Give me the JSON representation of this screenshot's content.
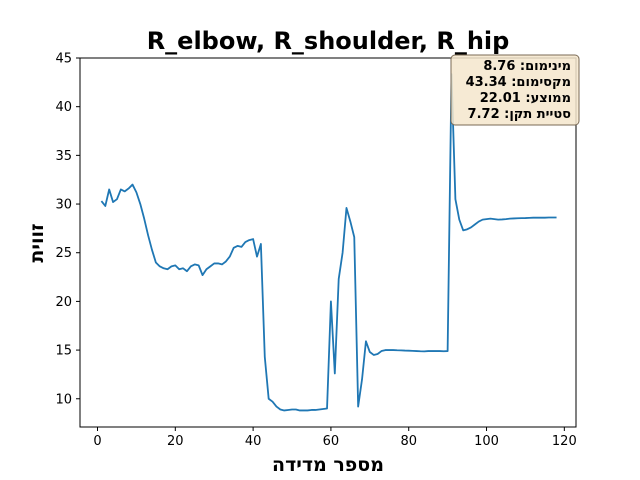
{
  "chart_data": {
    "type": "line",
    "title": "R_elbow, R_shoulder, R_hip",
    "xlabel": "מספר מדידה",
    "ylabel": "זווית",
    "xlim": [
      -4.5,
      123
    ],
    "ylim": [
      7.1,
      45
    ],
    "xticks": [
      0,
      20,
      40,
      60,
      80,
      100,
      120
    ],
    "yticks": [
      10,
      15,
      20,
      25,
      30,
      35,
      40,
      45
    ],
    "grid": false,
    "series": [
      {
        "color": "#1f77b4",
        "x": [
          1,
          2,
          3,
          4,
          5,
          6,
          7,
          8,
          9,
          10,
          11,
          12,
          13,
          14,
          15,
          16,
          17,
          18,
          19,
          20,
          21,
          22,
          23,
          24,
          25,
          26,
          27,
          28,
          29,
          30,
          31,
          32,
          33,
          34,
          35,
          36,
          37,
          38,
          39,
          40,
          41,
          42,
          43,
          44,
          45,
          46,
          47,
          48,
          49,
          50,
          51,
          52,
          53,
          54,
          55,
          56,
          57,
          58,
          59,
          60,
          61,
          62,
          63,
          64,
          65,
          66,
          67,
          68,
          69,
          70,
          71,
          72,
          73,
          74,
          75,
          76,
          77,
          78,
          79,
          80,
          81,
          82,
          83,
          84,
          85,
          86,
          87,
          88,
          89,
          90,
          91,
          92,
          93,
          94,
          95,
          96,
          97,
          98,
          99,
          100,
          101,
          102,
          103,
          104,
          105,
          106,
          107,
          108,
          109,
          110,
          111,
          112,
          113,
          114,
          115,
          116,
          117,
          118
        ],
        "y": [
          30.3,
          29.8,
          31.5,
          30.2,
          30.5,
          31.5,
          31.3,
          31.6,
          32.0,
          31.2,
          30.0,
          28.5,
          26.8,
          25.3,
          24.0,
          23.6,
          23.4,
          23.3,
          23.6,
          23.7,
          23.3,
          23.4,
          23.1,
          23.6,
          23.8,
          23.7,
          22.7,
          23.3,
          23.6,
          23.9,
          23.9,
          23.8,
          24.1,
          24.6,
          25.5,
          25.7,
          25.6,
          26.1,
          26.3,
          26.4,
          24.6,
          25.9,
          14.3,
          10.0,
          9.7,
          9.2,
          8.9,
          8.8,
          8.85,
          8.9,
          8.9,
          8.8,
          8.8,
          8.8,
          8.85,
          8.85,
          8.9,
          8.95,
          9.0,
          20.0,
          12.6,
          22.3,
          25.0,
          29.6,
          28.2,
          26.6,
          9.2,
          12.0,
          15.9,
          14.8,
          14.5,
          14.6,
          14.9,
          15.0,
          15.0,
          15.0,
          14.98,
          14.97,
          14.95,
          14.94,
          14.92,
          14.9,
          14.88,
          14.87,
          14.9,
          14.9,
          14.9,
          14.9,
          14.88,
          14.9,
          43.34,
          30.5,
          28.4,
          27.3,
          27.4,
          27.6,
          27.9,
          28.2,
          28.4,
          28.45,
          28.5,
          28.45,
          28.4,
          28.42,
          28.45,
          28.5,
          28.52,
          28.54,
          28.55,
          28.56,
          28.58,
          28.6,
          28.6,
          28.6,
          28.6,
          28.62,
          28.62,
          28.62
        ]
      }
    ],
    "stats_box": {
      "position": "top-right",
      "lines": [
        "מינימום: 8.76",
        "מקסימום: 43.34",
        "ממוצע: 22.01",
        "סטיית תקן: 7.72"
      ]
    }
  }
}
